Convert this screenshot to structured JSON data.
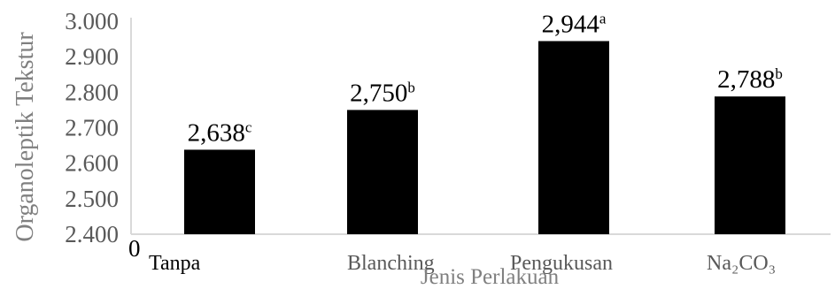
{
  "chart_data": {
    "type": "bar",
    "categories": [
      "Tanpa",
      "Blanching",
      "Pengukusan",
      "Na₂CO₃"
    ],
    "values": [
      2.638,
      2.75,
      2.944,
      2.788
    ],
    "data_labels": [
      {
        "value": "2,638",
        "sup": "c"
      },
      {
        "value": "2,750",
        "sup": "b"
      },
      {
        "value": "2,944",
        "sup": "a"
      },
      {
        "value": "2,788",
        "sup": "b"
      }
    ],
    "xlabel": "Jenis Perlakuan",
    "ylabel": "Organoleptik Tekstur",
    "ylim": [
      2.4,
      3.0
    ],
    "yticks": [
      {
        "value": 2.4,
        "label": "2.400"
      },
      {
        "value": 2.5,
        "label": "2.500"
      },
      {
        "value": 2.6,
        "label": "2.600"
      },
      {
        "value": 2.7,
        "label": "2.700"
      },
      {
        "value": 2.8,
        "label": "2.800"
      },
      {
        "value": 2.9,
        "label": "2.900"
      },
      {
        "value": 3.0,
        "label": "3.000"
      }
    ],
    "zero_label": "0",
    "bar_color": "#000000",
    "axis_color": "#d9d9d9",
    "grid": false,
    "legend": "none"
  }
}
